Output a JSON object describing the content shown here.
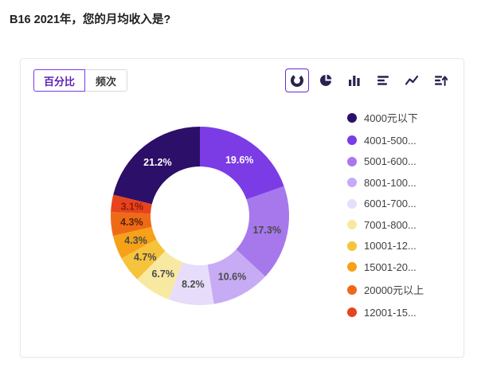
{
  "page": {
    "title": "B16 2021年，您的月均收入是?"
  },
  "controls": {
    "view_toggle": [
      {
        "label": "百分比",
        "active": true
      },
      {
        "label": "频次",
        "active": false
      }
    ],
    "chart_type_icons": [
      {
        "name": "donut-chart-icon",
        "active": true
      },
      {
        "name": "pie-chart-icon",
        "active": false
      },
      {
        "name": "column-chart-icon",
        "active": false
      },
      {
        "name": "bar-chart-icon",
        "active": false
      },
      {
        "name": "line-chart-icon",
        "active": false
      },
      {
        "name": "sort-rank-icon",
        "active": false
      }
    ],
    "accent_color": "#7c3aed"
  },
  "chart_data": {
    "type": "pie",
    "subtype": "donut",
    "title": "B16 2021年，您的月均收入是?",
    "unit": "%",
    "direction": "clockwise",
    "legend_position": "right",
    "segments": [
      {
        "label": "4000元以下",
        "value": 21.2,
        "color": "#2c0f68",
        "label_color": "#ffffff"
      },
      {
        "label": "4001-500...",
        "value": 19.6,
        "color": "#7b3ce6",
        "label_color": "#ffffff"
      },
      {
        "label": "5001-600...",
        "value": 17.3,
        "color": "#a678ec",
        "label_color": "#4a4a4a"
      },
      {
        "label": "8001-100...",
        "value": 10.6,
        "color": "#c7abf4",
        "label_color": "#4a4a4a"
      },
      {
        "label": "6001-700...",
        "value": 8.2,
        "color": "#e7ddfa",
        "label_color": "#4a4a4a"
      },
      {
        "label": "7001-800...",
        "value": 6.7,
        "color": "#f8e9a2",
        "label_color": "#4a4a4a"
      },
      {
        "label": "10001-12...",
        "value": 4.7,
        "color": "#f6c33c",
        "label_color": "#4a4a4a"
      },
      {
        "label": "15001-20...",
        "value": 4.3,
        "color": "#f6a118",
        "label_color": "#4a4a4a"
      },
      {
        "label": "20000元以上",
        "value": 4.3,
        "color": "#ef6a17",
        "label_color": "#5a2406"
      },
      {
        "label": "12001-15...",
        "value": 3.1,
        "color": "#e6431e",
        "label_color": "#8f1d05"
      }
    ]
  }
}
